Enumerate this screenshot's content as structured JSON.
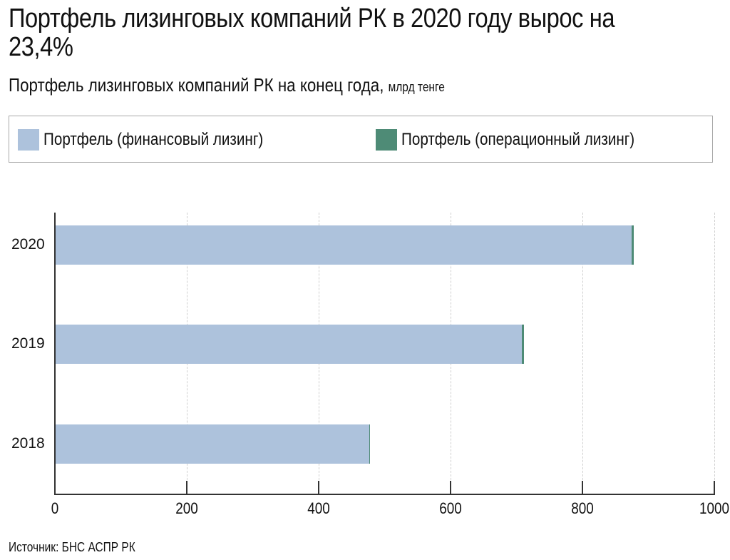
{
  "header": {
    "title": "Портфель лизинговых компаний РК в 2020 году вырос на 23,4%",
    "subtitle": "Портфель лизинговых компаний РК на конец года,",
    "unit": "млрд тенге"
  },
  "legend": {
    "items": [
      {
        "label": "Портфель (финансовый лизинг)",
        "color": "#adc2dc"
      },
      {
        "label": "Портфель (операционный лизинг)",
        "color": "#4e8b76"
      }
    ]
  },
  "axis": {
    "ticks": [
      "0",
      "200",
      "400",
      "600",
      "800",
      "1000"
    ]
  },
  "footer": {
    "source": "Источник: БНС АСПР РК"
  },
  "chart_data": {
    "type": "bar",
    "orientation": "horizontal",
    "stacked": true,
    "title": "Портфель лизинговых компаний РК в 2020 году вырос на 23,4%",
    "subtitle": "Портфель лизинговых компаний РК на конец года, млрд тенге",
    "categories": [
      "2020",
      "2019",
      "2018"
    ],
    "series": [
      {
        "name": "Портфель (финансовый лизинг)",
        "color": "#adc2dc",
        "values": [
          875,
          708,
          477
        ]
      },
      {
        "name": "Портфель (операционный лизинг)",
        "color": "#4e8b76",
        "values": [
          3,
          3,
          1
        ]
      }
    ],
    "xlabel": "",
    "ylabel": "",
    "xlim": [
      0,
      1000
    ],
    "xticks": [
      0,
      200,
      400,
      600,
      800,
      1000
    ],
    "grid": "vertical dashed",
    "legend_position": "top",
    "source": "Источник: БНС АСПР РК"
  }
}
